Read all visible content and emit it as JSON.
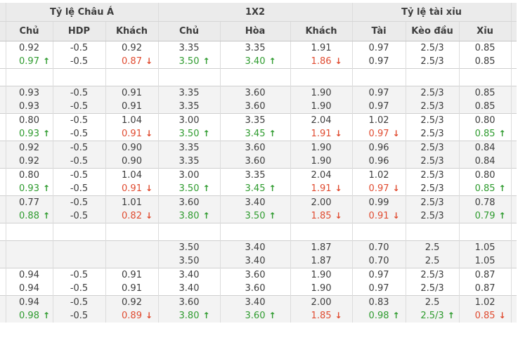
{
  "table": {
    "sections": [
      {
        "label": "Tỷ lệ Châu Á",
        "span": 3
      },
      {
        "label": "1X2",
        "span": 3
      },
      {
        "label": "Tỷ lệ tài xỉu",
        "span": 3
      }
    ],
    "columns": [
      "Chủ",
      "HDP",
      "Khách",
      "Chủ",
      "Hòa",
      "Khách",
      "Tài",
      "Kèo đầu",
      "Xỉu"
    ],
    "groups": [
      {
        "bg": "white",
        "rows": [
          [
            "0.92",
            "-0.5",
            "0.92",
            "3.35",
            "3.35",
            "1.91",
            "0.97",
            "2.5/3",
            "0.85"
          ],
          [
            "0.97|u",
            "-0.5",
            "0.87|d",
            "3.50|u",
            "3.40|u",
            "1.86|d",
            "0.97",
            "2.5/3",
            "0.85"
          ]
        ]
      },
      {
        "bg": "white",
        "rows": [
          [
            "",
            "",
            "",
            "",
            "",
            "",
            "",
            "",
            ""
          ]
        ]
      },
      {
        "bg": "gray",
        "rows": [
          [
            "0.93",
            "-0.5",
            "0.91",
            "3.35",
            "3.60",
            "1.90",
            "0.97",
            "2.5/3",
            "0.85"
          ],
          [
            "0.93",
            "-0.5",
            "0.91",
            "3.35",
            "3.60",
            "1.90",
            "0.97",
            "2.5/3",
            "0.85"
          ]
        ]
      },
      {
        "bg": "white",
        "rows": [
          [
            "0.80",
            "-0.5",
            "1.04",
            "3.00",
            "3.35",
            "2.04",
            "1.02",
            "2.5/3",
            "0.80"
          ],
          [
            "0.93|u",
            "-0.5",
            "0.91|d",
            "3.50|u",
            "3.45|u",
            "1.91|d",
            "0.97|d",
            "2.5/3",
            "0.85|u"
          ]
        ]
      },
      {
        "bg": "gray",
        "rows": [
          [
            "0.92",
            "-0.5",
            "0.90",
            "3.35",
            "3.60",
            "1.90",
            "0.96",
            "2.5/3",
            "0.84"
          ],
          [
            "0.92",
            "-0.5",
            "0.90",
            "3.35",
            "3.60",
            "1.90",
            "0.96",
            "2.5/3",
            "0.84"
          ]
        ]
      },
      {
        "bg": "white",
        "rows": [
          [
            "0.80",
            "-0.5",
            "1.04",
            "3.00",
            "3.35",
            "2.04",
            "1.02",
            "2.5/3",
            "0.80"
          ],
          [
            "0.93|u",
            "-0.5",
            "0.91|d",
            "3.50|u",
            "3.45|u",
            "1.91|d",
            "0.97|d",
            "2.5/3",
            "0.85|u"
          ]
        ]
      },
      {
        "bg": "gray",
        "rows": [
          [
            "0.77",
            "-0.5",
            "1.01",
            "3.60",
            "3.40",
            "2.00",
            "0.99",
            "2.5/3",
            "0.78"
          ],
          [
            "0.88|u",
            "-0.5",
            "0.82|d",
            "3.80|u",
            "3.50|u",
            "1.85|d",
            "0.91|d",
            "2.5/3",
            "0.79|u"
          ]
        ]
      },
      {
        "bg": "white",
        "rows": [
          [
            "",
            "",
            "",
            "",
            "",
            "",
            "",
            "",
            ""
          ]
        ]
      },
      {
        "bg": "gray",
        "rows": [
          [
            "",
            "",
            "",
            "3.50",
            "3.40",
            "1.87",
            "0.70",
            "2.5",
            "1.05"
          ],
          [
            "",
            "",
            "",
            "3.50",
            "3.40",
            "1.87",
            "0.70",
            "2.5",
            "1.05"
          ]
        ]
      },
      {
        "bg": "white",
        "rows": [
          [
            "0.94",
            "-0.5",
            "0.91",
            "3.40",
            "3.60",
            "1.90",
            "0.97",
            "2.5/3",
            "0.87"
          ],
          [
            "0.94",
            "-0.5",
            "0.91",
            "3.40",
            "3.60",
            "1.90",
            "0.97",
            "2.5/3",
            "0.87"
          ]
        ]
      },
      {
        "bg": "gray",
        "rows": [
          [
            "0.94",
            "-0.5",
            "0.92",
            "3.60",
            "3.40",
            "2.00",
            "0.83",
            "2.5",
            "1.02"
          ],
          [
            "0.98|u",
            "-0.5",
            "0.89|d",
            "3.80|u",
            "3.60|u",
            "1.85|d",
            "0.98|u",
            "2.5/3|u",
            "0.85|d"
          ]
        ]
      }
    ]
  },
  "icons": {
    "up_arrow": "↑",
    "down_arrow": "↓"
  },
  "colors": {
    "up": "#2e9b2e",
    "down": "#e04b30",
    "header_bg": "#ebebeb",
    "row_alt_bg": "#f3f3f3"
  }
}
